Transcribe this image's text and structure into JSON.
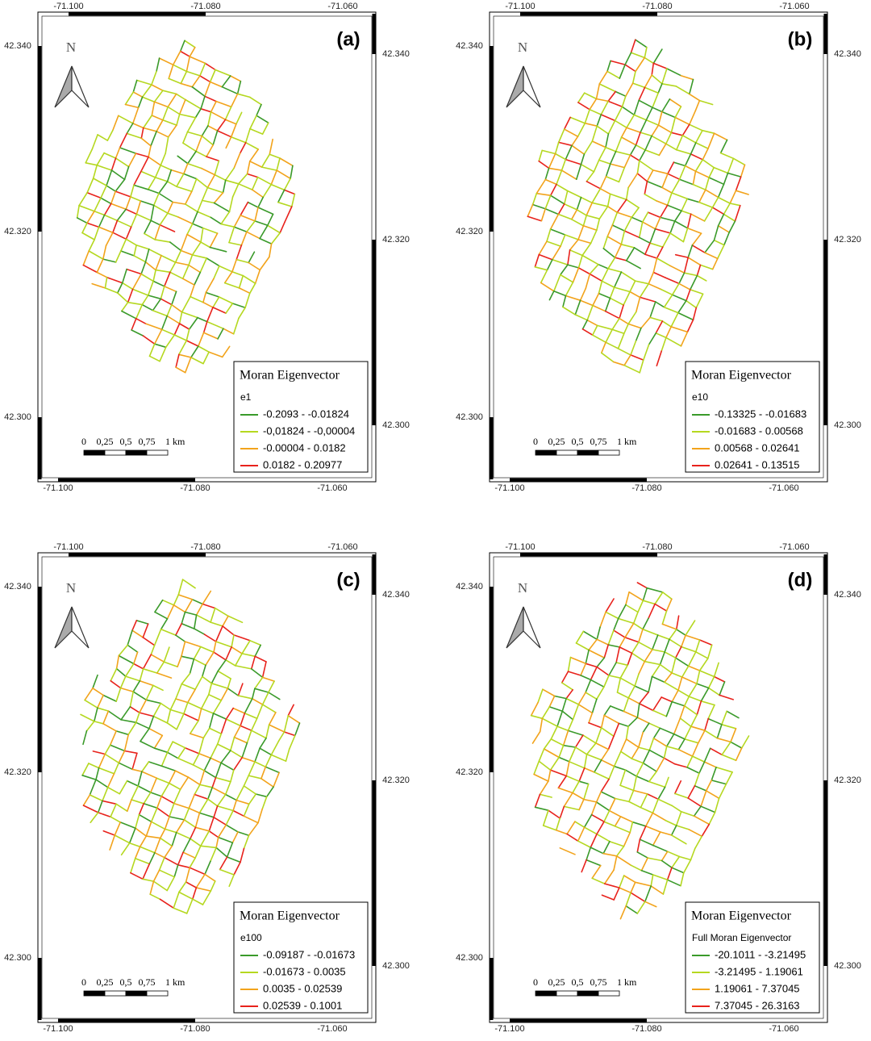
{
  "axes": {
    "x_ticks": [
      "-71.100",
      "-71.080",
      "-71.060"
    ],
    "y_ticks": [
      "42.340",
      "42.320",
      "42.300"
    ]
  },
  "north": "N",
  "scale_bar": [
    "0",
    "0,25",
    "0,5",
    "0,75",
    "1 km"
  ],
  "panels": [
    {
      "label": "(a)",
      "legend": {
        "title": "Moran Eigenvector",
        "subtitle": "e1",
        "classes": [
          {
            "label": "-0.2093 - -0.01824",
            "color": "#3a9a2a"
          },
          {
            "label": "-0,01824 - -0,00004",
            "color": "#b5d820"
          },
          {
            "label": "-0.00004 - 0.0182",
            "color": "#f2a31b"
          },
          {
            "label": "0.0182 - 0.20977",
            "color": "#e8221c"
          }
        ]
      }
    },
    {
      "label": "(b)",
      "legend": {
        "title": "Moran Eigenvector",
        "subtitle": "e10",
        "classes": [
          {
            "label": "-0.13325 - -0.01683",
            "color": "#3a9a2a"
          },
          {
            "label": "-0.01683 - 0.00568",
            "color": "#b5d820"
          },
          {
            "label": "0.00568 - 0.02641",
            "color": "#f2a31b"
          },
          {
            "label": "0.02641 - 0.13515",
            "color": "#e8221c"
          }
        ]
      }
    },
    {
      "label": "(c)",
      "legend": {
        "title": "Moran Eigenvector",
        "subtitle": "e100",
        "classes": [
          {
            "label": "-0.09187 - -0.01673",
            "color": "#3a9a2a"
          },
          {
            "label": "-0.01673 - 0.0035",
            "color": "#b5d820"
          },
          {
            "label": "0.0035 - 0.02539",
            "color": "#f2a31b"
          },
          {
            "label": "0.02539 - 0.1001",
            "color": "#e8221c"
          }
        ]
      }
    },
    {
      "label": "(d)",
      "legend": {
        "title": "Moran Eigenvector",
        "subtitle": "Full Moran Eigenvector",
        "classes": [
          {
            "label": "-20.1011 - -3.21495",
            "color": "#3a9a2a"
          },
          {
            "label": "-3.21495 - 1.19061",
            "color": "#b5d820"
          },
          {
            "label": "1.19061 - 7.37045",
            "color": "#f2a31b"
          },
          {
            "label": "7.37045 - 26.3163",
            "color": "#e8221c"
          }
        ]
      }
    }
  ]
}
